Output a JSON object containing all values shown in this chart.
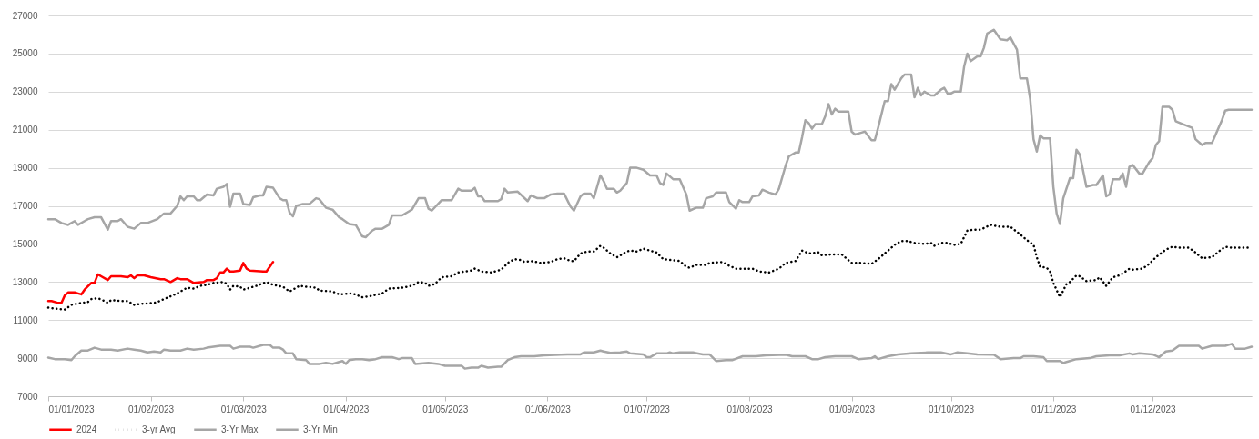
{
  "chart_data": {
    "type": "line",
    "xlim": [
      "2023-01-01",
      "2023-12-31"
    ],
    "xticks": [
      {
        "value": "2023-01-01",
        "label": "01/01/2023"
      },
      {
        "value": "2023-02-01",
        "label": "01/02/2023"
      },
      {
        "value": "2023-03-01",
        "label": "01/03/2023"
      },
      {
        "value": "2023-04-01",
        "label": "01/04/2023"
      },
      {
        "value": "2023-05-01",
        "label": "01/05/2023"
      },
      {
        "value": "2023-06-01",
        "label": "01/06/2023"
      },
      {
        "value": "2023-07-01",
        "label": "01/07/2023"
      },
      {
        "value": "2023-08-01",
        "label": "01/08/2023"
      },
      {
        "value": "2023-09-01",
        "label": "01/09/2023"
      },
      {
        "value": "2023-10-01",
        "label": "01/10/2023"
      },
      {
        "value": "2023-11-01",
        "label": "01/11/2023"
      },
      {
        "value": "2023-12-01",
        "label": "01/12/2023"
      }
    ],
    "ylim": [
      7000,
      27000
    ],
    "yticks": [
      7000,
      9000,
      11000,
      13000,
      15000,
      17000,
      19000,
      21000,
      23000,
      25000,
      27000
    ],
    "grid": "y",
    "legend": "bottom",
    "series": [
      {
        "name": "2024",
        "color": "#ff0000",
        "line_style": "solid",
        "x": [
          "2023-01-01",
          "2023-01-02",
          "2023-01-04",
          "2023-01-05",
          "2023-01-06",
          "2023-01-07",
          "2023-01-09",
          "2023-01-10",
          "2023-01-11",
          "2023-01-12",
          "2023-01-14",
          "2023-01-15",
          "2023-01-16",
          "2023-01-17",
          "2023-01-19",
          "2023-01-20",
          "2023-01-23",
          "2023-01-25",
          "2023-01-26",
          "2023-01-27",
          "2023-01-28",
          "2023-01-30",
          "2023-02-01",
          "2023-02-04",
          "2023-02-05",
          "2023-02-07",
          "2023-02-09",
          "2023-02-10",
          "2023-02-12",
          "2023-02-14",
          "2023-02-17",
          "2023-02-18",
          "2023-02-20",
          "2023-02-21",
          "2023-02-22",
          "2023-02-23",
          "2023-02-24",
          "2023-02-25",
          "2023-02-26",
          "2023-02-28",
          "2023-03-01",
          "2023-03-02",
          "2023-03-03",
          "2023-03-07",
          "2023-03-08",
          "2023-03-10"
        ],
        "values": [
          12000,
          12000,
          11900,
          11900,
          12300,
          12450,
          12450,
          12400,
          12350,
          12600,
          12950,
          12950,
          13400,
          13300,
          13100,
          13300,
          13300,
          13250,
          13350,
          13200,
          13350,
          13350,
          13250,
          13150,
          13150,
          13000,
          13200,
          13150,
          13150,
          12950,
          13000,
          13100,
          13100,
          13200,
          13500,
          13500,
          13700,
          13550,
          13550,
          13600,
          14000,
          13700,
          13600,
          13550,
          13550,
          14050
        ]
      },
      {
        "name": "3-yr Avg",
        "color": "#000000",
        "line_style": "dotted",
        "x": [
          "2023-01-01",
          "2023-01-03",
          "2023-01-06",
          "2023-01-08",
          "2023-01-11",
          "2023-01-13",
          "2023-01-14",
          "2023-01-16",
          "2023-01-18",
          "2023-01-19",
          "2023-01-20",
          "2023-01-23",
          "2023-01-25",
          "2023-01-27",
          "2023-01-29",
          "2023-02-02",
          "2023-02-03",
          "2023-02-05",
          "2023-02-07",
          "2023-02-09",
          "2023-02-12",
          "2023-02-14",
          "2023-02-16",
          "2023-02-18",
          "2023-02-20",
          "2023-02-23",
          "2023-02-24",
          "2023-02-25",
          "2023-02-26",
          "2023-02-28",
          "2023-03-01",
          "2023-03-03",
          "2023-03-05",
          "2023-03-08",
          "2023-03-10",
          "2023-03-13",
          "2023-03-15",
          "2023-03-18",
          "2023-03-20",
          "2023-03-23",
          "2023-03-24",
          "2023-03-28",
          "2023-03-30",
          "2023-04-03",
          "2023-04-06",
          "2023-04-08",
          "2023-04-12",
          "2023-04-14",
          "2023-04-18",
          "2023-04-21",
          "2023-04-23",
          "2023-04-25",
          "2023-04-26",
          "2023-04-28",
          "2023-04-30",
          "2023-05-03",
          "2023-05-05",
          "2023-05-09",
          "2023-05-10",
          "2023-05-12",
          "2023-05-15",
          "2023-05-18",
          "2023-05-20",
          "2023-05-22",
          "2023-05-24",
          "2023-05-25",
          "2023-05-27",
          "2023-05-30",
          "2023-06-02",
          "2023-06-04",
          "2023-06-06",
          "2023-06-08",
          "2023-06-09",
          "2023-06-11",
          "2023-06-13",
          "2023-06-15",
          "2023-06-17",
          "2023-06-18",
          "2023-06-20",
          "2023-06-22",
          "2023-06-25",
          "2023-06-26",
          "2023-06-28",
          "2023-06-30",
          "2023-07-04",
          "2023-07-06",
          "2023-07-11",
          "2023-07-13",
          "2023-07-14",
          "2023-07-16",
          "2023-07-19",
          "2023-07-20",
          "2023-07-24",
          "2023-07-26",
          "2023-07-28",
          "2023-08-02",
          "2023-08-04",
          "2023-08-07",
          "2023-08-10",
          "2023-08-12",
          "2023-08-15",
          "2023-08-17",
          "2023-08-19",
          "2023-08-22",
          "2023-08-23",
          "2023-08-26",
          "2023-08-29",
          "2023-09-01",
          "2023-09-04",
          "2023-09-07",
          "2023-09-09",
          "2023-09-11",
          "2023-09-14",
          "2023-09-16",
          "2023-09-18",
          "2023-09-20",
          "2023-09-23",
          "2023-09-25",
          "2023-09-26",
          "2023-09-28",
          "2023-09-30",
          "2023-10-02",
          "2023-10-04",
          "2023-10-06",
          "2023-10-08",
          "2023-10-10",
          "2023-10-13",
          "2023-10-16",
          "2023-10-19",
          "2023-10-22",
          "2023-10-24",
          "2023-10-26",
          "2023-10-27",
          "2023-10-28",
          "2023-10-30",
          "2023-10-31",
          "2023-11-01",
          "2023-11-03",
          "2023-11-05",
          "2023-11-06",
          "2023-11-08",
          "2023-11-09",
          "2023-11-11",
          "2023-11-14",
          "2023-11-15",
          "2023-11-17",
          "2023-11-19",
          "2023-11-21",
          "2023-11-22",
          "2023-11-24",
          "2023-11-25",
          "2023-11-28",
          "2023-11-30",
          "2023-12-02",
          "2023-12-05",
          "2023-12-07",
          "2023-12-09",
          "2023-12-12",
          "2023-12-14",
          "2023-12-16",
          "2023-12-19",
          "2023-12-21",
          "2023-12-23",
          "2023-12-25",
          "2023-12-31"
        ],
        "values": [
          11650,
          11600,
          11550,
          11800,
          11900,
          11950,
          12100,
          12150,
          12000,
          11900,
          12050,
          12000,
          12000,
          11800,
          11850,
          11900,
          11950,
          12100,
          12250,
          12400,
          12700,
          12650,
          12800,
          12850,
          12950,
          13000,
          12900,
          12600,
          12800,
          12750,
          12600,
          12700,
          12800,
          13000,
          12850,
          12750,
          12500,
          12800,
          12750,
          12700,
          12550,
          12500,
          12350,
          12400,
          12200,
          12250,
          12400,
          12650,
          12700,
          12800,
          13000,
          12950,
          12800,
          12900,
          13250,
          13300,
          13500,
          13600,
          13700,
          13550,
          13500,
          13650,
          14000,
          14200,
          14150,
          14050,
          14100,
          14000,
          14050,
          14200,
          14250,
          14100,
          14100,
          14500,
          14600,
          14600,
          14900,
          14800,
          14500,
          14300,
          14600,
          14650,
          14600,
          14750,
          14550,
          14200,
          14100,
          13800,
          13750,
          13900,
          13900,
          14000,
          14050,
          13850,
          13700,
          13700,
          13550,
          13500,
          13700,
          14000,
          14100,
          14650,
          14500,
          14550,
          14400,
          14450,
          14450,
          14000,
          14000,
          13950,
          14200,
          14500,
          14950,
          15150,
          15150,
          15050,
          15000,
          15050,
          14900,
          15050,
          15050,
          14950,
          15000,
          15700,
          15750,
          15750,
          16000,
          15900,
          15900,
          15500,
          15200,
          14950,
          14300,
          13800,
          13750,
          13550,
          12950,
          12200,
          12900,
          13000,
          13350,
          13300,
          13050,
          13100,
          13250,
          12800,
          13250,
          13350,
          13450,
          13700,
          13650,
          13700,
          13950,
          14300,
          14700,
          14850,
          14800,
          14800,
          14550,
          14250,
          14300,
          14600,
          14850,
          14800,
          14800
        ]
      },
      {
        "name": "3-Yr Max",
        "color": "#a6a6a6",
        "line_style": "solid",
        "x": [
          "2023-01-01",
          "2023-01-03",
          "2023-01-05",
          "2023-01-07",
          "2023-01-09",
          "2023-01-10",
          "2023-01-12",
          "2023-01-13",
          "2023-01-15",
          "2023-01-17",
          "2023-01-19",
          "2023-01-20",
          "2023-01-22",
          "2023-01-23",
          "2023-01-25",
          "2023-01-27",
          "2023-01-29",
          "2023-01-31",
          "2023-02-03",
          "2023-02-05",
          "2023-02-07",
          "2023-02-09",
          "2023-02-10",
          "2023-02-11",
          "2023-02-12",
          "2023-02-14",
          "2023-02-15",
          "2023-02-16",
          "2023-02-18",
          "2023-02-20",
          "2023-02-21",
          "2023-02-23",
          "2023-02-24",
          "2023-02-25",
          "2023-02-26",
          "2023-02-28",
          "2023-03-01",
          "2023-03-03",
          "2023-03-04",
          "2023-03-06",
          "2023-03-07",
          "2023-03-08",
          "2023-03-10",
          "2023-03-12",
          "2023-03-13",
          "2023-03-14",
          "2023-03-15",
          "2023-03-16",
          "2023-03-17",
          "2023-03-19",
          "2023-03-21",
          "2023-03-23",
          "2023-03-24",
          "2023-03-26",
          "2023-03-28",
          "2023-03-30",
          "2023-03-31",
          "2023-04-02",
          "2023-04-04",
          "2023-04-06",
          "2023-04-07",
          "2023-04-09",
          "2023-04-10",
          "2023-04-12",
          "2023-04-14",
          "2023-04-15",
          "2023-04-18",
          "2023-04-20",
          "2023-04-21",
          "2023-04-23",
          "2023-04-25",
          "2023-04-26",
          "2023-04-27",
          "2023-04-30",
          "2023-05-03",
          "2023-05-05",
          "2023-05-06",
          "2023-05-09",
          "2023-05-10",
          "2023-05-11",
          "2023-05-12",
          "2023-05-13",
          "2023-05-17",
          "2023-05-18",
          "2023-05-19",
          "2023-05-20",
          "2023-05-23",
          "2023-05-26",
          "2023-05-27",
          "2023-05-29",
          "2023-05-31",
          "2023-06-02",
          "2023-06-04",
          "2023-06-06",
          "2023-06-08",
          "2023-06-09",
          "2023-06-11",
          "2023-06-12",
          "2023-06-14",
          "2023-06-15",
          "2023-06-17",
          "2023-06-18",
          "2023-06-19",
          "2023-06-21",
          "2023-06-22",
          "2023-06-23",
          "2023-06-25",
          "2023-06-26",
          "2023-06-28",
          "2023-06-30",
          "2023-07-02",
          "2023-07-04",
          "2023-07-05",
          "2023-07-06",
          "2023-07-07",
          "2023-07-09",
          "2023-07-11",
          "2023-07-13",
          "2023-07-14",
          "2023-07-16",
          "2023-07-18",
          "2023-07-19",
          "2023-07-21",
          "2023-07-22",
          "2023-07-25",
          "2023-07-26",
          "2023-07-28",
          "2023-07-29",
          "2023-07-30",
          "2023-08-01",
          "2023-08-02",
          "2023-08-04",
          "2023-08-05",
          "2023-08-07",
          "2023-08-09",
          "2023-08-10",
          "2023-08-12",
          "2023-08-13",
          "2023-08-15",
          "2023-08-16",
          "2023-08-17",
          "2023-08-18",
          "2023-08-19",
          "2023-08-20",
          "2023-08-21",
          "2023-08-23",
          "2023-08-24",
          "2023-08-25",
          "2023-08-26",
          "2023-08-27",
          "2023-08-28",
          "2023-08-31",
          "2023-09-01",
          "2023-09-02",
          "2023-09-04",
          "2023-09-05",
          "2023-09-07",
          "2023-09-08",
          "2023-09-09",
          "2023-09-11",
          "2023-09-12",
          "2023-09-13",
          "2023-09-14",
          "2023-09-16",
          "2023-09-17",
          "2023-09-19",
          "2023-09-20",
          "2023-09-21",
          "2023-09-22",
          "2023-09-23",
          "2023-09-25",
          "2023-09-26",
          "2023-09-28",
          "2023-09-29",
          "2023-09-30",
          "2023-10-01",
          "2023-10-02",
          "2023-10-04",
          "2023-10-05",
          "2023-10-06",
          "2023-10-07",
          "2023-10-09",
          "2023-10-10",
          "2023-10-11",
          "2023-10-12",
          "2023-10-14",
          "2023-10-16",
          "2023-10-18",
          "2023-10-19",
          "2023-10-21",
          "2023-10-22",
          "2023-10-24",
          "2023-10-25",
          "2023-10-26",
          "2023-10-27",
          "2023-10-28",
          "2023-10-29",
          "2023-10-31",
          "2023-11-01",
          "2023-11-02",
          "2023-11-03",
          "2023-11-04",
          "2023-11-06",
          "2023-11-07",
          "2023-11-08",
          "2023-11-09",
          "2023-11-10",
          "2023-11-11",
          "2023-11-13",
          "2023-11-14",
          "2023-11-16",
          "2023-11-17",
          "2023-11-18",
          "2023-11-19",
          "2023-11-21",
          "2023-11-22",
          "2023-11-23",
          "2023-11-24",
          "2023-11-25",
          "2023-11-27",
          "2023-11-28",
          "2023-11-30",
          "2023-12-01",
          "2023-12-02",
          "2023-12-03",
          "2023-12-04",
          "2023-12-06",
          "2023-12-07",
          "2023-12-08",
          "2023-12-10",
          "2023-12-13",
          "2023-12-14",
          "2023-12-16",
          "2023-12-17",
          "2023-12-19",
          "2023-12-21",
          "2023-12-22",
          "2023-12-23",
          "2023-12-24",
          "2023-12-31"
        ],
        "values": [
          16300,
          16300,
          16100,
          16000,
          16200,
          16000,
          16200,
          16300,
          16400,
          16400,
          15750,
          16200,
          16200,
          16300,
          15900,
          15800,
          16100,
          16100,
          16300,
          16600,
          16600,
          17000,
          17500,
          17300,
          17500,
          17500,
          17300,
          17300,
          17600,
          17550,
          17900,
          18000,
          18150,
          16950,
          17650,
          17650,
          17100,
          17050,
          17450,
          17550,
          17550,
          18000,
          17950,
          17400,
          17300,
          17300,
          16650,
          16450,
          17000,
          17100,
          17100,
          17400,
          17350,
          16900,
          16800,
          16400,
          16300,
          16050,
          16000,
          15400,
          15350,
          15700,
          15800,
          15800,
          16000,
          16500,
          16500,
          16700,
          16800,
          17400,
          17400,
          16850,
          16750,
          17300,
          17300,
          17900,
          17800,
          17800,
          17950,
          17500,
          17500,
          17250,
          17250,
          17350,
          17900,
          17700,
          17750,
          17250,
          17550,
          17400,
          17400,
          17600,
          17650,
          17650,
          16950,
          16750,
          17500,
          17650,
          17650,
          17400,
          18600,
          18300,
          17900,
          17900,
          17700,
          17800,
          18200,
          19000,
          19000,
          18900,
          18600,
          18600,
          18200,
          18100,
          18700,
          18400,
          18400,
          17600,
          16750,
          16900,
          16900,
          17400,
          17500,
          17700,
          17700,
          17200,
          16850,
          17300,
          17200,
          17200,
          17500,
          17550,
          17850,
          17700,
          17600,
          17900,
          19100,
          19600,
          19800,
          19800,
          20600,
          21500,
          21350,
          21050,
          21300,
          21300,
          21700,
          22350,
          21800,
          22100,
          21950,
          21950,
          20900,
          20750,
          20850,
          20900,
          20450,
          20450,
          21100,
          22500,
          22500,
          23400,
          23100,
          23700,
          23900,
          23900,
          22700,
          23200,
          22800,
          23000,
          22800,
          22800,
          23100,
          23200,
          22900,
          22900,
          23000,
          23000,
          24300,
          25000,
          24600,
          24850,
          24850,
          25300,
          26050,
          26250,
          25750,
          25700,
          25850,
          25200,
          23700,
          23700,
          22600,
          20500,
          19850,
          20700,
          20550,
          20550,
          18000,
          16600,
          16050,
          17400,
          18450,
          18450,
          19950,
          19700,
          18850,
          18000,
          18100,
          18100,
          18600,
          17500,
          17600,
          18400,
          18400,
          18700,
          18000,
          19050,
          19150,
          18700,
          18700,
          19300,
          19500,
          20200,
          20400,
          22200,
          22200,
          22050,
          21450,
          21300,
          21100,
          20500,
          20200,
          20300,
          20300,
          21100,
          21500,
          22000,
          22050,
          22050
        ]
      },
      {
        "name": "3-Yr Min",
        "color": "#a6a6a6",
        "line_style": "solid",
        "x": [
          "2023-01-01",
          "2023-01-03",
          "2023-01-06",
          "2023-01-08",
          "2023-01-09",
          "2023-01-11",
          "2023-01-13",
          "2023-01-15",
          "2023-01-17",
          "2023-01-20",
          "2023-01-22",
          "2023-01-25",
          "2023-01-27",
          "2023-01-29",
          "2023-01-31",
          "2023-02-02",
          "2023-02-04",
          "2023-02-05",
          "2023-02-07",
          "2023-02-10",
          "2023-02-12",
          "2023-02-14",
          "2023-02-17",
          "2023-02-18",
          "2023-02-20",
          "2023-02-22",
          "2023-02-25",
          "2023-02-26",
          "2023-02-27",
          "2023-02-28",
          "2023-03-03",
          "2023-03-04",
          "2023-03-07",
          "2023-03-09",
          "2023-03-10",
          "2023-03-12",
          "2023-03-13",
          "2023-03-14",
          "2023-03-16",
          "2023-03-17",
          "2023-03-20",
          "2023-03-21",
          "2023-03-24",
          "2023-03-26",
          "2023-03-28",
          "2023-03-30",
          "2023-03-31",
          "2023-04-01",
          "2023-04-02",
          "2023-04-04",
          "2023-04-06",
          "2023-04-08",
          "2023-04-10",
          "2023-04-12",
          "2023-04-15",
          "2023-04-17",
          "2023-04-18",
          "2023-04-21",
          "2023-04-22",
          "2023-04-26",
          "2023-04-29",
          "2023-05-01",
          "2023-05-06",
          "2023-05-07",
          "2023-05-09",
          "2023-05-11",
          "2023-05-12",
          "2023-05-14",
          "2023-05-17",
          "2023-05-18",
          "2023-05-20",
          "2023-05-22",
          "2023-05-24",
          "2023-05-28",
          "2023-05-31",
          "2023-06-05",
          "2023-06-07",
          "2023-06-11",
          "2023-06-12",
          "2023-06-15",
          "2023-06-17",
          "2023-06-18",
          "2023-06-20",
          "2023-06-23",
          "2023-06-25",
          "2023-06-26",
          "2023-06-30",
          "2023-07-01",
          "2023-07-02",
          "2023-07-04",
          "2023-07-07",
          "2023-07-08",
          "2023-07-09",
          "2023-07-11",
          "2023-07-15",
          "2023-07-18",
          "2023-07-20",
          "2023-07-22",
          "2023-07-25",
          "2023-07-27",
          "2023-07-30",
          "2023-08-03",
          "2023-08-06",
          "2023-08-12",
          "2023-08-14",
          "2023-08-18",
          "2023-08-20",
          "2023-08-22",
          "2023-08-24",
          "2023-08-27",
          "2023-09-01",
          "2023-09-03",
          "2023-09-07",
          "2023-09-08",
          "2023-09-09",
          "2023-09-12",
          "2023-09-15",
          "2023-09-19",
          "2023-09-24",
          "2023-09-28",
          "2023-10-01",
          "2023-10-03",
          "2023-10-06",
          "2023-10-09",
          "2023-10-14",
          "2023-10-16",
          "2023-10-20",
          "2023-10-22",
          "2023-10-23",
          "2023-10-26",
          "2023-10-29",
          "2023-10-30",
          "2023-11-03",
          "2023-11-04",
          "2023-11-05",
          "2023-11-08",
          "2023-11-12",
          "2023-11-14",
          "2023-11-18",
          "2023-11-21",
          "2023-11-24",
          "2023-11-25",
          "2023-11-27",
          "2023-12-01",
          "2023-12-03",
          "2023-12-05",
          "2023-12-07",
          "2023-12-09",
          "2023-12-11",
          "2023-12-15",
          "2023-12-16",
          "2023-12-19",
          "2023-12-23",
          "2023-12-25",
          "2023-12-26",
          "2023-12-29",
          "2023-12-31"
        ],
        "values": [
          9030,
          8950,
          8950,
          8900,
          9100,
          9400,
          9400,
          9550,
          9450,
          9450,
          9400,
          9500,
          9450,
          9400,
          9300,
          9350,
          9300,
          9450,
          9400,
          9400,
          9500,
          9450,
          9500,
          9550,
          9600,
          9650,
          9650,
          9500,
          9550,
          9600,
          9600,
          9550,
          9700,
          9700,
          9550,
          9550,
          9450,
          9250,
          9250,
          8950,
          8900,
          8700,
          8700,
          8750,
          8700,
          8800,
          8850,
          8700,
          8900,
          8950,
          8950,
          8900,
          8950,
          9050,
          9050,
          8950,
          9000,
          9000,
          8700,
          8750,
          8700,
          8600,
          8600,
          8450,
          8500,
          8500,
          8600,
          8500,
          8550,
          8550,
          8900,
          9050,
          9100,
          9100,
          9150,
          9180,
          9200,
          9200,
          9300,
          9300,
          9400,
          9350,
          9280,
          9300,
          9350,
          9250,
          9200,
          9050,
          9050,
          9250,
          9250,
          9300,
          9250,
          9300,
          9300,
          9200,
          9200,
          8850,
          8900,
          8900,
          9100,
          9100,
          9150,
          9180,
          9100,
          9100,
          8950,
          8950,
          9050,
          9100,
          9100,
          8950,
          9000,
          9100,
          8950,
          9100,
          9200,
          9250,
          9300,
          9300,
          9200,
          9300,
          9250,
          9200,
          9180,
          8950,
          9000,
          9000,
          9100,
          9100,
          9050,
          8850,
          8850,
          8750,
          8800,
          8950,
          9000,
          9100,
          9150,
          9150,
          9250,
          9200,
          9250,
          9200,
          9050,
          9350,
          9400,
          9650,
          9650,
          9650,
          9500,
          9650,
          9650,
          9750,
          9500,
          9500,
          9600
        ]
      }
    ]
  }
}
